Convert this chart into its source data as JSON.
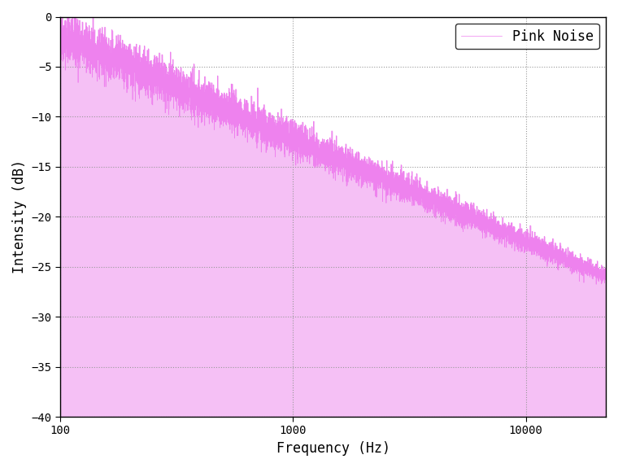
{
  "title": "",
  "xlabel": "Frequency (Hz)",
  "ylabel": "Intensity (dB)",
  "legend_label": "Pink Noise",
  "line_color": "#EE82EE",
  "fill_color": "#F5C0F5",
  "background_color": "#FFFFFF",
  "xmin": 100,
  "xmax": 22050,
  "ymin": -40,
  "ymax": 0,
  "yticks": [
    0,
    -5,
    -10,
    -15,
    -20,
    -25,
    -30,
    -35,
    -40
  ],
  "xtick_positions": [
    100,
    1000,
    10000
  ],
  "xtick_labels": [
    "100",
    "1000",
    "10000"
  ],
  "seed": 42,
  "num_points": 8000,
  "start_db": -2.0,
  "end_db": -26.0,
  "noise_scale_low": 1.2,
  "noise_scale_high": 0.4
}
